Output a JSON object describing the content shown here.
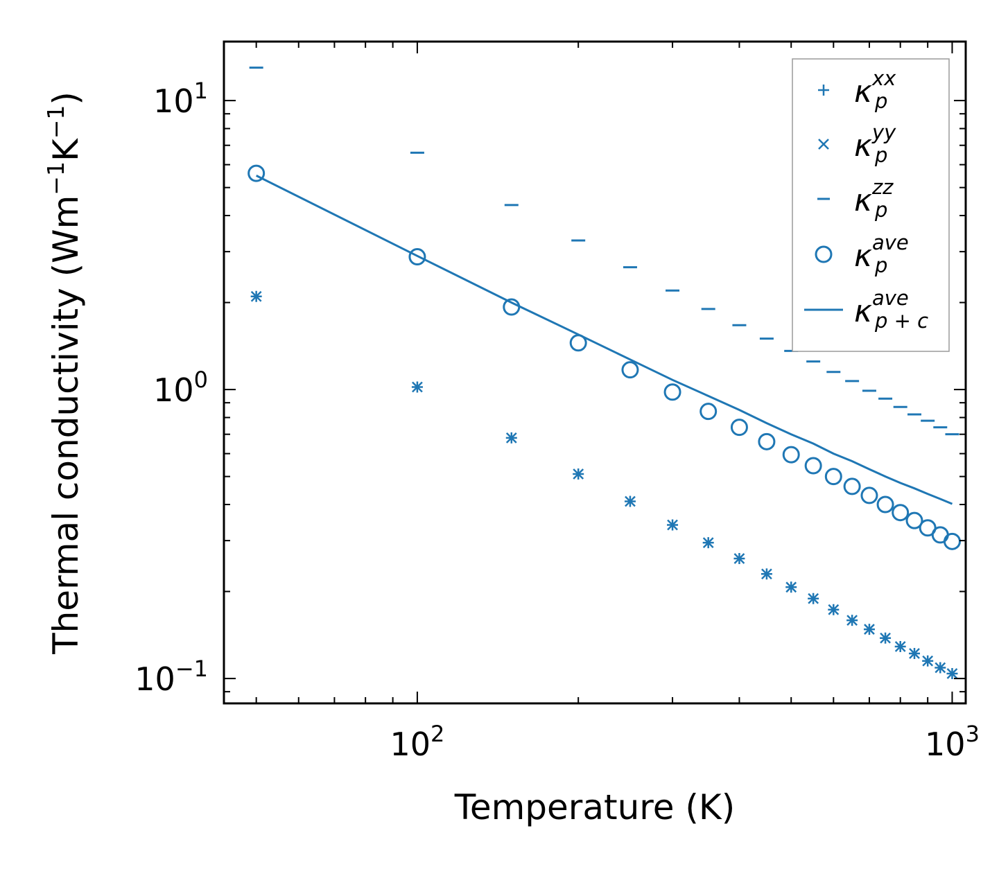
{
  "chart_data": {
    "type": "scatter",
    "xlabel": "Temperature (K)",
    "ylabel_parts": [
      "Thermal conductivity (Wm",
      "−1",
      "K",
      "−1",
      ")"
    ],
    "xscale": "log",
    "yscale": "log",
    "xlim": [
      43.5,
      1060
    ],
    "ylim": [
      0.082,
      16.0
    ],
    "x_ticks": [
      {
        "base": "10",
        "exp": "2",
        "value": 100
      },
      {
        "base": "10",
        "exp": "3",
        "value": 1000
      }
    ],
    "y_ticks": [
      {
        "base": "10",
        "exp": "−1",
        "value": 0.1
      },
      {
        "base": "10",
        "exp": "0",
        "value": 1
      },
      {
        "base": "10",
        "exp": "1",
        "value": 10
      }
    ],
    "x": [
      50,
      100,
      150,
      200,
      250,
      300,
      350,
      400,
      450,
      500,
      550,
      600,
      650,
      700,
      750,
      800,
      850,
      900,
      950,
      1000
    ],
    "series": [
      {
        "name": "kappa_p_xx",
        "marker": "plus",
        "values": [
          2.1,
          1.02,
          0.68,
          0.51,
          0.41,
          0.34,
          0.295,
          0.26,
          0.23,
          0.207,
          0.189,
          0.173,
          0.159,
          0.148,
          0.138,
          0.129,
          0.122,
          0.115,
          0.109,
          0.104
        ]
      },
      {
        "name": "kappa_p_yy",
        "marker": "x",
        "values": [
          2.1,
          1.02,
          0.68,
          0.51,
          0.41,
          0.34,
          0.295,
          0.26,
          0.23,
          0.207,
          0.189,
          0.173,
          0.159,
          0.148,
          0.138,
          0.129,
          0.122,
          0.115,
          0.109,
          0.104
        ]
      },
      {
        "name": "kappa_p_zz",
        "marker": "dash",
        "values": [
          13.0,
          6.6,
          4.35,
          3.28,
          2.65,
          2.2,
          1.9,
          1.67,
          1.5,
          1.36,
          1.25,
          1.15,
          1.07,
          0.99,
          0.93,
          0.87,
          0.82,
          0.78,
          0.74,
          0.7
        ]
      },
      {
        "name": "kappa_p_ave",
        "marker": "circle",
        "values": [
          5.6,
          2.88,
          1.93,
          1.45,
          1.17,
          0.98,
          0.84,
          0.74,
          0.66,
          0.595,
          0.545,
          0.5,
          0.462,
          0.43,
          0.4,
          0.375,
          0.352,
          0.332,
          0.314,
          0.298
        ]
      },
      {
        "name": "kappa_p+c_ave",
        "marker": "line",
        "values": [
          5.5,
          2.9,
          2.0,
          1.55,
          1.27,
          1.08,
          0.95,
          0.85,
          0.765,
          0.7,
          0.65,
          0.6,
          0.565,
          0.53,
          0.5,
          0.475,
          0.455,
          0.435,
          0.418,
          0.402
        ]
      }
    ],
    "legend": {
      "position": "top-right",
      "entries": [
        {
          "base": "κ",
          "sup": "xx",
          "sub": "p"
        },
        {
          "base": "κ",
          "sup": "yy",
          "sub": "p"
        },
        {
          "base": "κ",
          "sup": "zz",
          "sub": "p"
        },
        {
          "base": "κ",
          "sup": "ave",
          "sub": "p"
        },
        {
          "base": "κ",
          "sup": "ave",
          "sub": "p + c"
        }
      ]
    },
    "color": "#1f77b4",
    "grid": false
  }
}
